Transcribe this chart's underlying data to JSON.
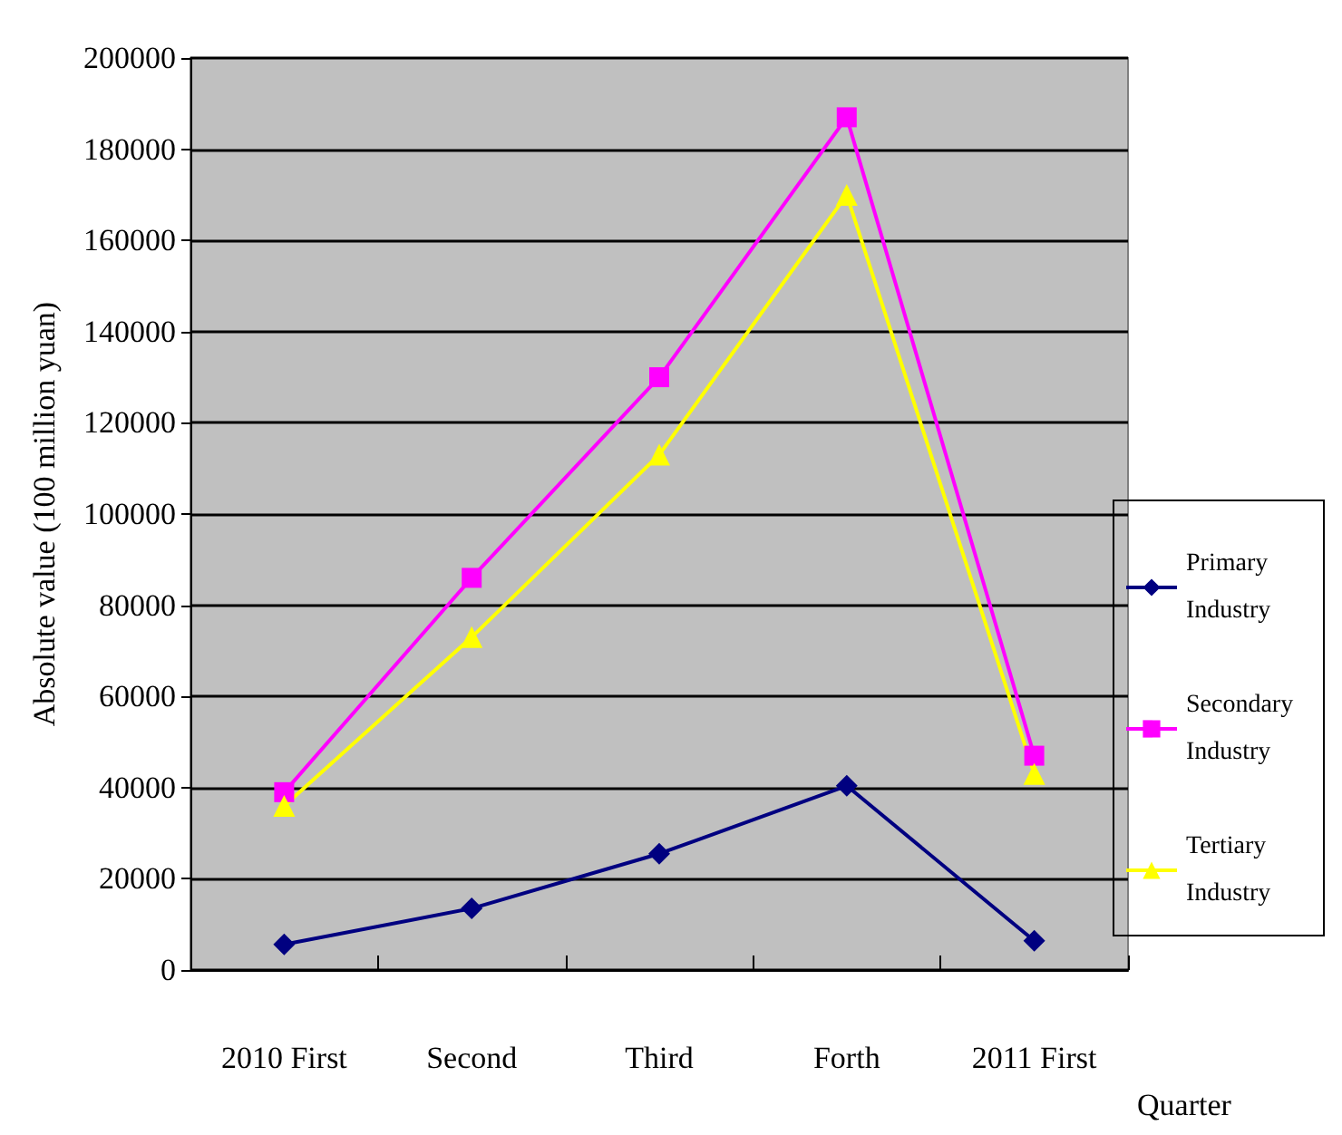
{
  "chart_data": {
    "type": "line",
    "xlabel": "Quarter",
    "ylabel": "Absolute value (100 million yuan)",
    "categories": [
      "2010 First",
      "Second",
      "Third",
      "Forth",
      "2011 First"
    ],
    "series": [
      {
        "name": "Primary Industry",
        "color": "#000080",
        "marker": "diamond",
        "values": [
          5600,
          13500,
          25500,
          40400,
          6400
        ]
      },
      {
        "name": "Secondary Industry",
        "color": "#ff00ff",
        "marker": "square",
        "values": [
          39000,
          86000,
          130000,
          187000,
          47000
        ]
      },
      {
        "name": "Tertiary Industry",
        "color": "#ffff00",
        "marker": "triangle",
        "values": [
          36000,
          73000,
          113000,
          170000,
          43000
        ]
      }
    ],
    "ylim": [
      0,
      200000
    ],
    "yticks": [
      0,
      20000,
      40000,
      60000,
      80000,
      100000,
      120000,
      140000,
      160000,
      180000,
      200000
    ],
    "grid": "y",
    "legend": "right",
    "line_style": "solid"
  }
}
